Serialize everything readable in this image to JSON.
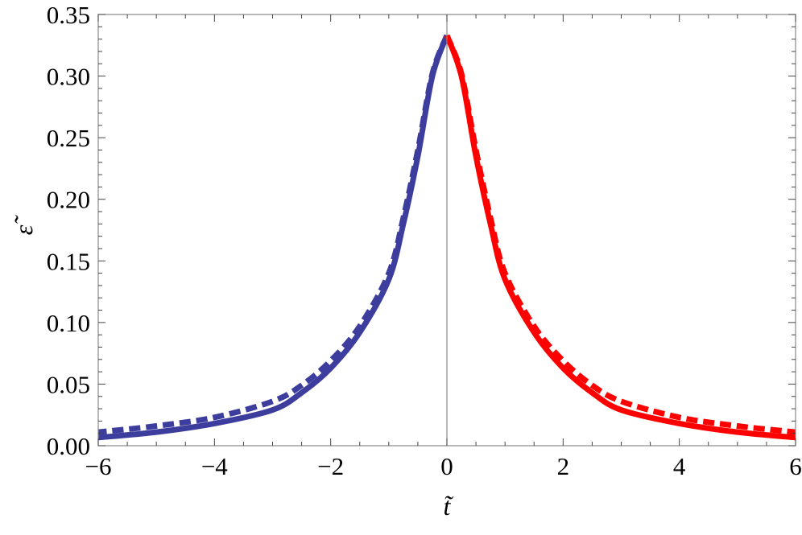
{
  "chart_data": {
    "type": "line",
    "xlabel": "t̃",
    "ylabel": "ε̃",
    "xlim": [
      -6,
      6
    ],
    "ylim": [
      0,
      0.35
    ],
    "xticks": [
      -6,
      -4,
      -2,
      0,
      2,
      4,
      6
    ],
    "xtick_labels": [
      "−6",
      "−4",
      "−2",
      "0",
      "2",
      "4",
      "6"
    ],
    "yticks": [
      0,
      0.05,
      0.1,
      0.15,
      0.2,
      0.25,
      0.3,
      0.35
    ],
    "ytick_labels": [
      "0.00",
      "0.05",
      "0.10",
      "0.15",
      "0.20",
      "0.25",
      "0.30",
      "0.35"
    ],
    "grid": false,
    "vertical_line_at_x": 0,
    "colors": {
      "left_branch": "#3d3d9e",
      "right_branch": "#ff0000"
    },
    "x": [
      0,
      0.25,
      0.5,
      0.75,
      1,
      1.5,
      2,
      2.5,
      3,
      4,
      5,
      6
    ],
    "series": [
      {
        "style": "solid",
        "symmetric": true,
        "values": [
          0.333,
          0.3,
          0.235,
          0.18,
          0.135,
          0.092,
          0.063,
          0.043,
          0.029,
          0.018,
          0.011,
          0.0066
        ]
      },
      {
        "style": "dashed",
        "symmetric": true,
        "values": [
          0.333,
          0.302,
          0.24,
          0.185,
          0.14,
          0.097,
          0.069,
          0.049,
          0.036,
          0.023,
          0.016,
          0.011
        ]
      }
    ]
  }
}
